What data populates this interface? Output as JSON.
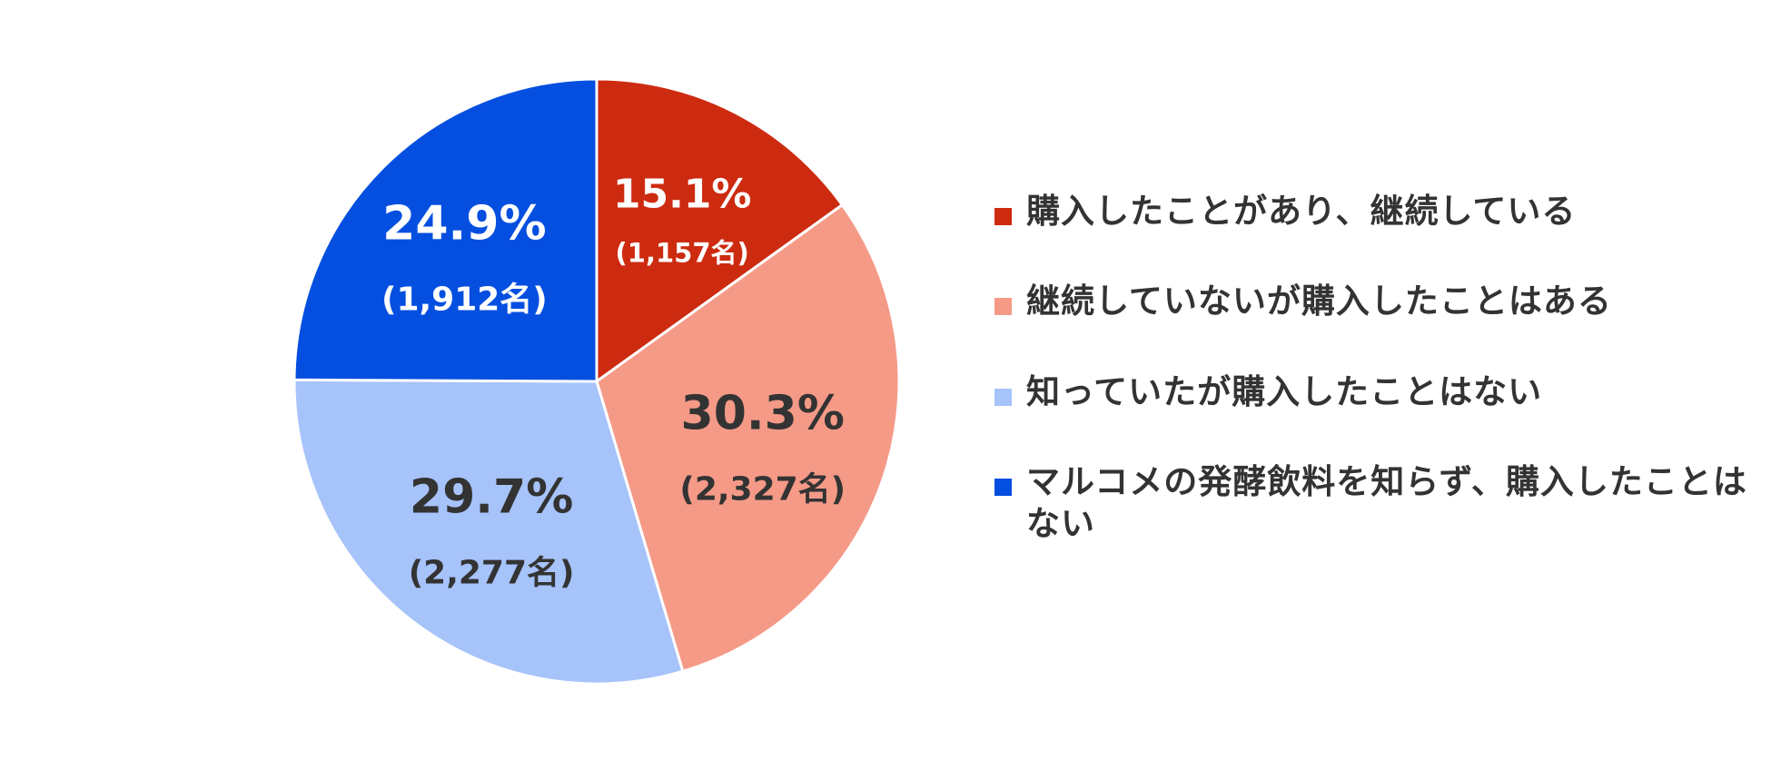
{
  "chart_data": {
    "type": "pie",
    "start_angle_deg": 0,
    "direction": "clockwise",
    "slices": [
      {
        "label": "購入したことがあり、継続している",
        "percent_label": "15.1%",
        "count_label": "(1,157名)",
        "value": 1157,
        "percent": 15.1,
        "color": "#CD2B10",
        "text_color": "#ffffff"
      },
      {
        "label": "継続していないが購入したことはある",
        "percent_label": "30.3%",
        "count_label": "(2,327名)",
        "value": 2327,
        "percent": 30.3,
        "color": "#F59A87",
        "text_color": "#333333"
      },
      {
        "label": "知っていたが購入したことはない",
        "percent_label": "29.7%",
        "count_label": "(2,277名)",
        "value": 2277,
        "percent": 29.7,
        "color": "#A6C3FA",
        "text_color": "#333333"
      },
      {
        "label": "マルコメの発酵飲料を知らず、購入したことはない",
        "percent_label": "24.9%",
        "count_label": "(1,912名)",
        "value": 1912,
        "percent": 24.9,
        "color": "#044FE0",
        "text_color": "#ffffff"
      }
    ],
    "legend_position": "right"
  }
}
